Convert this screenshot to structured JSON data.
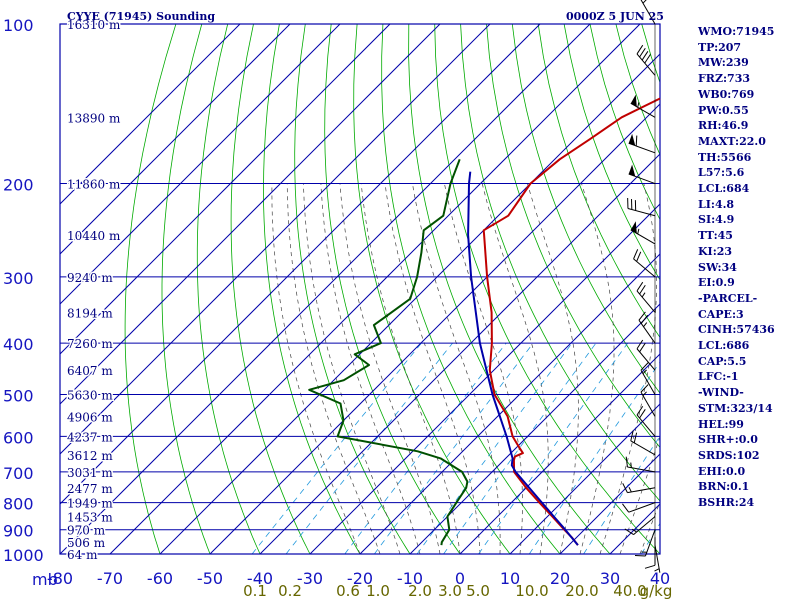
{
  "header": {
    "station_title": "CYYE (71945) Sounding",
    "valid_time": "0000Z  5 JUN 25"
  },
  "indices": [
    "WMO:71945",
    "TP:207",
    "MW:239",
    "FRZ:733",
    "WB0:769",
    "PW:0.55",
    "RH:46.9",
    "MAXT:22.0",
    "TH:5566",
    "L57:5.6",
    "LCL:684",
    "LI:4.8",
    "SI:4.9",
    "TT:45",
    "KI:23",
    "SW:34",
    "EI:0.9",
    "-PARCEL-",
    "CAPE:3",
    "CINH:57436",
    "LCL:686",
    "CAP:5.5",
    "LFC:-1",
    "-WIND-",
    "STM:323/14",
    "HEL:99",
    "SHR+:0.0",
    "SRDS:102",
    "EHI:0.0",
    "BRN:0.1",
    "BSHR:24"
  ],
  "colors": {
    "frame": "#0000aa",
    "pressure_label": "#1515c0",
    "height_label": "#000080",
    "mixing_label": "#666600",
    "dry_adiabat": "#00aa00",
    "moist_adiabat": "#444444",
    "mixing_ratio": "#2299dd",
    "temperature": "#c00000",
    "dewpoint": "#005000",
    "parcel": "#0000aa",
    "wind": "#000000"
  },
  "chart_data": {
    "type": "line",
    "title": "CYYE (71945) Sounding",
    "diagram": "skew-T log-P",
    "x_unit_label": "mb",
    "x_ticks": [
      -80,
      -70,
      -60,
      -50,
      -40,
      -30,
      -20,
      -10,
      0,
      10,
      20,
      30,
      40
    ],
    "xlim": [
      -80,
      40
    ],
    "y_scale": "log",
    "y_ticks": [
      100,
      200,
      300,
      400,
      500,
      600,
      700,
      800,
      900,
      1000
    ],
    "ylim": [
      1000,
      100
    ],
    "height_labels": [
      {
        "p": 100,
        "label": "16310 m"
      },
      {
        "p": 150,
        "label": "13890 m"
      },
      {
        "p": 200,
        "label": "11860 m"
      },
      {
        "p": 250,
        "label": "10440 m"
      },
      {
        "p": 300,
        "label": "9240 m"
      },
      {
        "p": 350,
        "label": "8194 m"
      },
      {
        "p": 400,
        "label": "7260 m"
      },
      {
        "p": 450,
        "label": "6407 m"
      },
      {
        "p": 500,
        "label": "5630 m"
      },
      {
        "p": 550,
        "label": "4906 m"
      },
      {
        "p": 600,
        "label": "4237 m"
      },
      {
        "p": 650,
        "label": "3612 m"
      },
      {
        "p": 700,
        "label": "3031 m"
      },
      {
        "p": 750,
        "label": "2477 m"
      },
      {
        "p": 800,
        "label": "1949 m"
      },
      {
        "p": 850,
        "label": "1453 m"
      },
      {
        "p": 900,
        "label": "970 m"
      },
      {
        "p": 950,
        "label": "506 m"
      },
      {
        "p": 1000,
        "label": "64 m"
      }
    ],
    "mixing_ratio_labels": [
      "0.1",
      "0.2",
      "0.6",
      "1.0",
      "2.0",
      "3.0",
      "5.0",
      "10.0",
      "20.0",
      "40.0"
    ],
    "mixing_ratio_unit": "g/kg",
    "series": [
      {
        "data": [
          [
            962,
            21.8
          ],
          [
            930,
            19
          ],
          [
            900,
            16
          ],
          [
            850,
            11
          ],
          [
            800,
            5.6
          ],
          [
            750,
            0
          ],
          [
            700,
            -5.6
          ],
          [
            665,
            -8
          ],
          [
            655,
            -8.5
          ],
          [
            645,
            -7.6
          ],
          [
            625,
            -10
          ],
          [
            600,
            -13
          ],
          [
            550,
            -18
          ],
          [
            500,
            -25
          ],
          [
            450,
            -30.8
          ],
          [
            400,
            -35.8
          ],
          [
            350,
            -42
          ],
          [
            300,
            -50
          ],
          [
            250,
            -59
          ],
          [
            245,
            -60
          ],
          [
            230,
            -58
          ],
          [
            200,
            -60
          ],
          [
            180,
            -59
          ],
          [
            165,
            -57
          ],
          [
            150,
            -55
          ],
          [
            135,
            -50
          ],
          [
            120,
            -51
          ],
          [
            110,
            -50
          ],
          [
            100,
            -48
          ]
        ]
      },
      {
        "data": [
          [
            962,
            -5.5
          ],
          [
            950,
            -6
          ],
          [
            900,
            -7
          ],
          [
            850,
            -10
          ],
          [
            800,
            -11
          ],
          [
            750,
            -12
          ],
          [
            730,
            -13
          ],
          [
            700,
            -16
          ],
          [
            660,
            -23
          ],
          [
            640,
            -29
          ],
          [
            600,
            -48
          ],
          [
            560,
            -50
          ],
          [
            520,
            -54
          ],
          [
            490,
            -63
          ],
          [
            470,
            -58
          ],
          [
            440,
            -56
          ],
          [
            420,
            -61
          ],
          [
            400,
            -58
          ],
          [
            370,
            -63
          ],
          [
            330,
            -61
          ],
          [
            300,
            -64
          ],
          [
            270,
            -68
          ],
          [
            245,
            -72
          ],
          [
            230,
            -71
          ],
          [
            200,
            -76
          ],
          [
            180,
            -79
          ]
        ]
      },
      {
        "data": [
          [
            962,
            21.8
          ],
          [
            900,
            16.2
          ],
          [
            850,
            11.3
          ],
          [
            800,
            6.1
          ],
          [
            750,
            0.6
          ],
          [
            700,
            -5.3
          ],
          [
            680,
            -7.4
          ],
          [
            660,
            -8.6
          ],
          [
            600,
            -14.2
          ],
          [
            500,
            -25.4
          ],
          [
            400,
            -38.2
          ],
          [
            300,
            -53.2
          ],
          [
            250,
            -62.2
          ],
          [
            200,
            -72.3
          ],
          [
            190,
            -74.4
          ]
        ]
      }
    ],
    "wind_barbs": [
      {
        "p": 100,
        "dir": 330,
        "kt": 20
      },
      {
        "p": 125,
        "dir": 320,
        "kt": 40
      },
      {
        "p": 150,
        "dir": 300,
        "kt": 55
      },
      {
        "p": 175,
        "dir": 290,
        "kt": 60
      },
      {
        "p": 200,
        "dir": 290,
        "kt": 50
      },
      {
        "p": 230,
        "dir": 285,
        "kt": 30
      },
      {
        "p": 260,
        "dir": 300,
        "kt": 55
      },
      {
        "p": 300,
        "dir": 310,
        "kt": 20
      },
      {
        "p": 350,
        "dir": 320,
        "kt": 25
      },
      {
        "p": 400,
        "dir": 325,
        "kt": 25
      },
      {
        "p": 450,
        "dir": 320,
        "kt": 20
      },
      {
        "p": 500,
        "dir": 330,
        "kt": 15
      },
      {
        "p": 550,
        "dir": 330,
        "kt": 15
      },
      {
        "p": 600,
        "dir": 320,
        "kt": 20
      },
      {
        "p": 650,
        "dir": 300,
        "kt": 20
      },
      {
        "p": 700,
        "dir": 280,
        "kt": 15
      },
      {
        "p": 750,
        "dir": 260,
        "kt": 15
      },
      {
        "p": 800,
        "dir": 250,
        "kt": 10
      },
      {
        "p": 850,
        "dir": 230,
        "kt": 15
      },
      {
        "p": 900,
        "dir": 200,
        "kt": 15
      },
      {
        "p": 930,
        "dir": 180,
        "kt": 10
      },
      {
        "p": 962,
        "dir": 170,
        "kt": 5
      }
    ]
  }
}
